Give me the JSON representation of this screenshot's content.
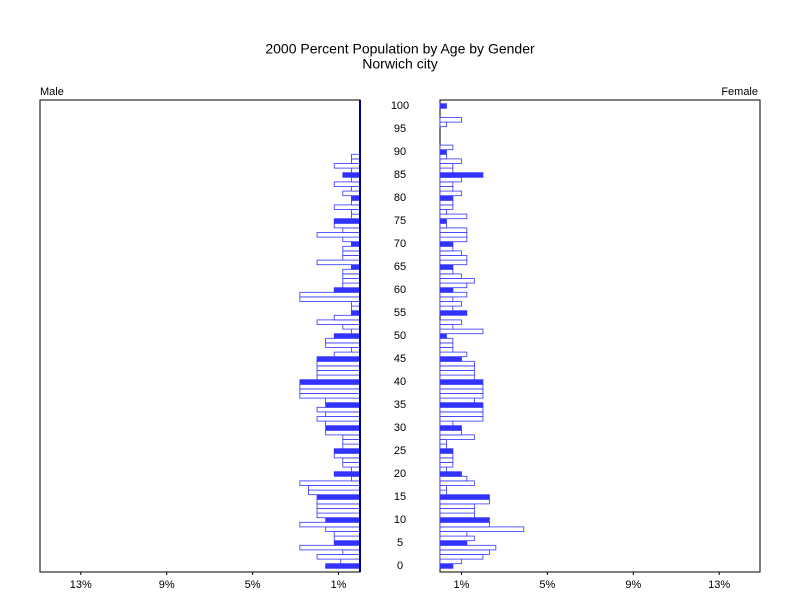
{
  "chart_data": {
    "type": "pyramid",
    "title": "2000 Percent Population by Age by Gender",
    "subtitle": "Norwich city",
    "categories": [
      "0",
      null,
      null,
      null,
      null,
      "5",
      null,
      null,
      null,
      null,
      "10",
      null,
      null,
      null,
      null,
      "15",
      null,
      null,
      null,
      null,
      "20",
      null,
      null,
      null,
      null,
      "25",
      null,
      null,
      null,
      null,
      "30",
      null,
      null,
      null,
      null,
      "35",
      null,
      null,
      null,
      null,
      "40",
      null,
      null,
      null,
      null,
      "45",
      null,
      null,
      null,
      null,
      "50",
      null,
      null,
      null,
      null,
      "55",
      null,
      null,
      null,
      null,
      "60",
      null,
      null,
      null,
      null,
      "65",
      null,
      null,
      null,
      null,
      "70",
      null,
      null,
      null,
      null,
      "75",
      null,
      null,
      null,
      null,
      "80",
      null,
      null,
      null,
      null,
      "85",
      null,
      null,
      null,
      null,
      "90",
      null,
      null,
      null,
      null,
      "95",
      null,
      null,
      null,
      null,
      "100"
    ],
    "series": [
      {
        "name": "Male",
        "color": "#3333ff",
        "values": [
          1.6,
          0.9,
          2.0,
          0.8,
          2.8,
          1.2,
          1.2,
          1.2,
          1.6,
          2.8,
          1.6,
          2.0,
          2.0,
          2.0,
          2.0,
          2.0,
          2.4,
          2.4,
          2.8,
          0.4,
          1.2,
          0.4,
          0.8,
          0.8,
          1.2,
          1.2,
          0.8,
          0.8,
          0.8,
          1.6,
          1.6,
          1.6,
          2.0,
          1.6,
          2.0,
          1.6,
          1.6,
          2.8,
          2.8,
          2.8,
          2.8,
          2.0,
          2.0,
          2.0,
          2.0,
          2.0,
          1.2,
          0.4,
          1.6,
          1.6,
          1.2,
          0.4,
          0.8,
          2.0,
          1.2,
          0.4,
          0.4,
          0.4,
          2.8,
          2.8,
          1.2,
          0.8,
          0.8,
          0.8,
          0.8,
          0.4,
          2.0,
          0.8,
          0.8,
          0.8,
          0.4,
          0.8,
          2.0,
          0.8,
          1.2,
          1.2,
          0.4,
          0.4,
          1.2,
          0.4,
          0.4,
          0.8,
          0.4,
          1.2,
          0.4,
          0.8,
          0.4,
          1.2,
          0.4,
          0.4,
          0,
          0,
          0,
          0,
          0,
          0,
          0,
          0,
          0,
          0,
          0
        ]
      },
      {
        "name": "Female",
        "color": "#3333ff",
        "values": [
          0.6,
          1.0,
          2.0,
          2.3,
          2.6,
          1.25,
          1.6,
          1.25,
          3.9,
          2.3,
          2.3,
          1.6,
          1.6,
          1.6,
          2.3,
          2.3,
          0.3,
          0.3,
          1.6,
          1.25,
          1.0,
          0.3,
          0.6,
          0.6,
          0.6,
          0.6,
          0.3,
          0.3,
          1.6,
          1.0,
          1.0,
          0.6,
          2.0,
          2.0,
          2.0,
          2.0,
          1.6,
          2.0,
          2.0,
          2.0,
          2.0,
          1.6,
          1.6,
          1.6,
          1.6,
          1.0,
          1.25,
          0.6,
          0.6,
          0.6,
          0.3,
          2.0,
          0.6,
          1.0,
          0,
          1.25,
          0.6,
          1.0,
          0.6,
          1.25,
          0.6,
          1.25,
          1.6,
          1.0,
          0.6,
          0.6,
          1.25,
          1.25,
          1.0,
          0.6,
          0.6,
          1.25,
          1.25,
          1.25,
          0.3,
          0.3,
          1.25,
          0.3,
          0.6,
          0.6,
          0.6,
          1.0,
          0.6,
          0.6,
          1.0,
          2.0,
          0.6,
          0.6,
          1.0,
          0.3,
          0.3,
          0.6,
          0,
          0,
          0,
          0,
          0.3,
          1.0,
          0,
          0,
          0.3
        ]
      }
    ],
    "xlim": [
      0,
      14.9
    ],
    "xticks": [
      {
        "value": 1,
        "label": "1%"
      },
      {
        "value": 5,
        "label": "5%"
      },
      {
        "value": 9,
        "label": "9%"
      },
      {
        "value": 13,
        "label": "13%"
      }
    ]
  }
}
